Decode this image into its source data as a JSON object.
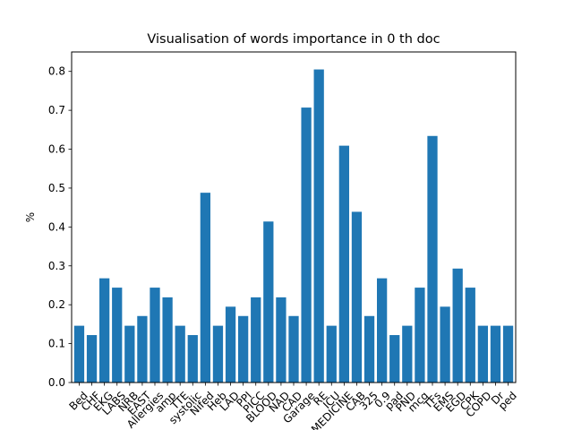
{
  "chart_data": {
    "type": "bar",
    "title": "Visualisation of words importance in 0 th doc",
    "xlabel": "",
    "ylabel": "%",
    "ylim": [
      0,
      0.85
    ],
    "yticks": [
      "0.0",
      "0.1",
      "0.2",
      "0.3",
      "0.4",
      "0.5",
      "0.6",
      "0.7",
      "0.8"
    ],
    "grid": false,
    "bar_color": "#1f77b4",
    "categories": [
      "Bed",
      "CHF",
      "EKG",
      "LABS",
      "NRB",
      "EAST",
      "Allergies",
      "amp",
      "TTE",
      "systolic",
      "Nifed",
      "Heb",
      "LAD",
      "PPI",
      "PICC",
      "BLOOD",
      "NAD",
      "CAD",
      "Garage",
      "RE",
      "ICU",
      "MEDICINE",
      "CAB",
      "325",
      "0.9",
      "pad",
      "PND",
      "mcg",
      "TFs",
      "EMS",
      "EGD",
      "CPK",
      "COPD",
      "Dr",
      "ped"
    ],
    "values": [
      0.146,
      0.122,
      0.268,
      0.244,
      0.146,
      0.171,
      0.244,
      0.219,
      0.146,
      0.122,
      0.488,
      0.146,
      0.195,
      0.171,
      0.219,
      0.414,
      0.219,
      0.171,
      0.707,
      0.805,
      0.146,
      0.609,
      0.439,
      0.171,
      0.268,
      0.122,
      0.146,
      0.244,
      0.634,
      0.195,
      0.293,
      0.244,
      0.146,
      0.146,
      0.146
    ]
  }
}
